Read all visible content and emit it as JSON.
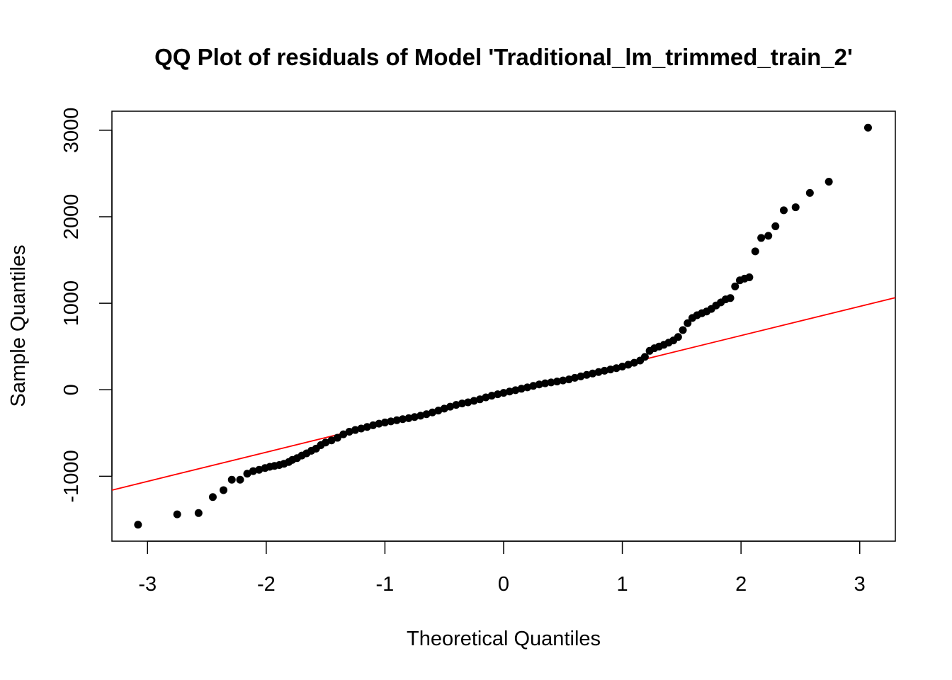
{
  "chart_data": {
    "type": "scatter",
    "title": "QQ Plot of residuals of Model 'Traditional_lm_trimmed_train_2'",
    "xlabel": "Theoretical Quantiles",
    "ylabel": "Sample Quantiles",
    "xlim": [
      -3.3,
      3.3
    ],
    "ylim": [
      -1750,
      3220
    ],
    "x_ticks": [
      -3,
      -2,
      -1,
      0,
      1,
      2,
      3
    ],
    "x_tick_labels": [
      "-3",
      "-2",
      "-1",
      "0",
      "1",
      "2",
      "3"
    ],
    "y_ticks": [
      -1000,
      0,
      1000,
      2000,
      3000
    ],
    "y_tick_labels": [
      "-1000",
      "0",
      "1000",
      "2000",
      "3000"
    ],
    "grid": false,
    "point_color": "#000000",
    "line_color": "#ff0000",
    "reference_line": {
      "type": "line",
      "points": [
        [
          -3.3,
          -1160
        ],
        [
          3.3,
          1065
        ]
      ]
    },
    "series": [
      {
        "type": "scatter",
        "points": [
          [
            -3.08,
            -1560
          ],
          [
            -2.75,
            -1440
          ],
          [
            -2.57,
            -1425
          ],
          [
            -2.45,
            -1240
          ],
          [
            -2.36,
            -1160
          ],
          [
            -2.29,
            -1040
          ],
          [
            -2.22,
            -1040
          ],
          [
            -2.16,
            -970
          ],
          [
            -2.11,
            -940
          ],
          [
            -2.06,
            -925
          ],
          [
            -2.01,
            -905
          ],
          [
            -1.97,
            -890
          ],
          [
            -1.93,
            -880
          ],
          [
            -1.89,
            -870
          ],
          [
            -1.85,
            -855
          ],
          [
            -1.81,
            -835
          ],
          [
            -1.78,
            -810
          ],
          [
            -1.74,
            -790
          ],
          [
            -1.7,
            -760
          ],
          [
            -1.66,
            -735
          ],
          [
            -1.62,
            -705
          ],
          [
            -1.58,
            -680
          ],
          [
            -1.54,
            -640
          ],
          [
            -1.5,
            -610
          ],
          [
            -1.45,
            -585
          ],
          [
            -1.4,
            -555
          ],
          [
            -1.35,
            -515
          ],
          [
            -1.3,
            -485
          ],
          [
            -1.25,
            -465
          ],
          [
            -1.2,
            -448
          ],
          [
            -1.15,
            -430
          ],
          [
            -1.1,
            -410
          ],
          [
            -1.05,
            -392
          ],
          [
            -1.0,
            -378
          ],
          [
            -0.95,
            -365
          ],
          [
            -0.9,
            -352
          ],
          [
            -0.85,
            -340
          ],
          [
            -0.8,
            -328
          ],
          [
            -0.75,
            -315
          ],
          [
            -0.7,
            -300
          ],
          [
            -0.65,
            -282
          ],
          [
            -0.6,
            -262
          ],
          [
            -0.55,
            -240
          ],
          [
            -0.5,
            -218
          ],
          [
            -0.45,
            -195
          ],
          [
            -0.4,
            -175
          ],
          [
            -0.35,
            -158
          ],
          [
            -0.3,
            -145
          ],
          [
            -0.25,
            -128
          ],
          [
            -0.2,
            -110
          ],
          [
            -0.15,
            -88
          ],
          [
            -0.1,
            -68
          ],
          [
            -0.05,
            -52
          ],
          [
            0.0,
            -36
          ],
          [
            0.05,
            -20
          ],
          [
            0.1,
            -5
          ],
          [
            0.15,
            12
          ],
          [
            0.2,
            28
          ],
          [
            0.25,
            45
          ],
          [
            0.3,
            62
          ],
          [
            0.35,
            75
          ],
          [
            0.4,
            85
          ],
          [
            0.45,
            95
          ],
          [
            0.5,
            108
          ],
          [
            0.55,
            120
          ],
          [
            0.6,
            138
          ],
          [
            0.65,
            155
          ],
          [
            0.7,
            172
          ],
          [
            0.75,
            188
          ],
          [
            0.8,
            205
          ],
          [
            0.85,
            220
          ],
          [
            0.9,
            235
          ],
          [
            0.95,
            250
          ],
          [
            1.0,
            268
          ],
          [
            1.05,
            290
          ],
          [
            1.1,
            312
          ],
          [
            1.15,
            338
          ],
          [
            1.19,
            380
          ],
          [
            1.23,
            450
          ],
          [
            1.27,
            480
          ],
          [
            1.31,
            500
          ],
          [
            1.35,
            520
          ],
          [
            1.39,
            545
          ],
          [
            1.43,
            570
          ],
          [
            1.47,
            610
          ],
          [
            1.51,
            690
          ],
          [
            1.55,
            770
          ],
          [
            1.59,
            830
          ],
          [
            1.63,
            862
          ],
          [
            1.67,
            885
          ],
          [
            1.71,
            905
          ],
          [
            1.75,
            935
          ],
          [
            1.79,
            975
          ],
          [
            1.83,
            1010
          ],
          [
            1.87,
            1045
          ],
          [
            1.91,
            1060
          ],
          [
            1.95,
            1195
          ],
          [
            1.99,
            1265
          ],
          [
            2.03,
            1285
          ],
          [
            2.07,
            1300
          ],
          [
            2.12,
            1600
          ],
          [
            2.17,
            1755
          ],
          [
            2.23,
            1780
          ],
          [
            2.29,
            1890
          ],
          [
            2.36,
            2075
          ],
          [
            2.46,
            2110
          ],
          [
            2.58,
            2275
          ],
          [
            2.74,
            2405
          ],
          [
            3.07,
            3030
          ]
        ]
      }
    ]
  }
}
